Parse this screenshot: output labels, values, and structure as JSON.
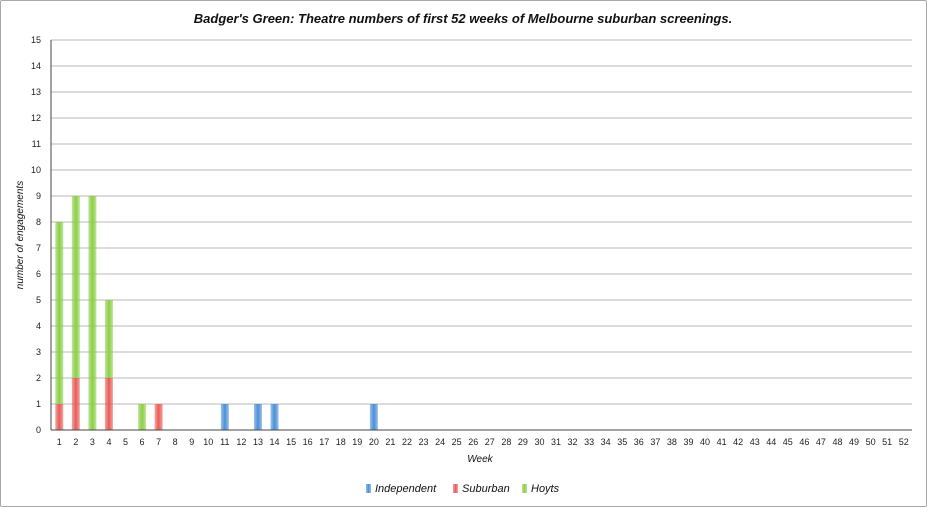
{
  "chart_data": {
    "type": "bar",
    "stacked": true,
    "title": "Badger's Green: Theatre numbers of first 52 weeks of Melbourne suburban screenings.",
    "xlabel": "Week",
    "ylabel": "number of engagements",
    "ylim": [
      0,
      15
    ],
    "ytick_step": 1,
    "grid": true,
    "legend_position": "bottom",
    "categories": [
      "1",
      "2",
      "3",
      "4",
      "5",
      "6",
      "7",
      "8",
      "9",
      "10",
      "11",
      "12",
      "13",
      "14",
      "15",
      "16",
      "17",
      "18",
      "19",
      "20",
      "21",
      "22",
      "23",
      "24",
      "25",
      "26",
      "27",
      "28",
      "29",
      "30",
      "31",
      "32",
      "33",
      "34",
      "35",
      "36",
      "37",
      "38",
      "39",
      "40",
      "41",
      "42",
      "43",
      "44",
      "45",
      "46",
      "47",
      "48",
      "49",
      "50",
      "51",
      "52"
    ],
    "series": [
      {
        "name": "Independent",
        "color": "#4a8fd8",
        "values": [
          0,
          0,
          0,
          0,
          0,
          0,
          0,
          0,
          0,
          0,
          1,
          0,
          1,
          1,
          0,
          0,
          0,
          0,
          0,
          1,
          0,
          0,
          0,
          0,
          0,
          0,
          0,
          0,
          0,
          0,
          0,
          0,
          0,
          0,
          0,
          0,
          0,
          0,
          0,
          0,
          0,
          0,
          0,
          0,
          0,
          0,
          0,
          0,
          0,
          0,
          0,
          0
        ]
      },
      {
        "name": "Suburban",
        "color": "#e85b57",
        "values": [
          1,
          2,
          0,
          2,
          0,
          0,
          1,
          0,
          0,
          0,
          0,
          0,
          0,
          0,
          0,
          0,
          0,
          0,
          0,
          0,
          0,
          0,
          0,
          0,
          0,
          0,
          0,
          0,
          0,
          0,
          0,
          0,
          0,
          0,
          0,
          0,
          0,
          0,
          0,
          0,
          0,
          0,
          0,
          0,
          0,
          0,
          0,
          0,
          0,
          0,
          0,
          0
        ]
      },
      {
        "name": "Hoyts",
        "color": "#8ccf45",
        "values": [
          7,
          7,
          9,
          3,
          0,
          1,
          0,
          0,
          0,
          0,
          0,
          0,
          0,
          0,
          0,
          0,
          0,
          0,
          0,
          0,
          0,
          0,
          0,
          0,
          0,
          0,
          0,
          0,
          0,
          0,
          0,
          0,
          0,
          0,
          0,
          0,
          0,
          0,
          0,
          0,
          0,
          0,
          0,
          0,
          0,
          0,
          0,
          0,
          0,
          0,
          0,
          0
        ]
      }
    ]
  }
}
